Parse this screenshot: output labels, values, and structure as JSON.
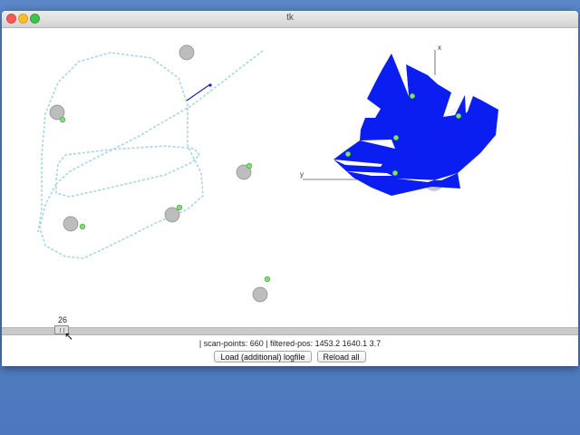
{
  "window": {
    "title": "tk"
  },
  "slider": {
    "value": "26"
  },
  "status": {
    "text": "| scan-points: 660 | filtered-pos: 1453.2 1640.1 3.7"
  },
  "buttons": {
    "load_logfile": "Load (additional) logfile",
    "reload_all": "Reload all"
  },
  "axes": {
    "x_label": "x",
    "y_label": "y"
  },
  "colors": {
    "scan_fill": "#0a1ef2",
    "path": "#a9d6e4",
    "landmark": "#bdbdbd",
    "marker": "#7fe07a",
    "ray": "#1a1ad0"
  }
}
